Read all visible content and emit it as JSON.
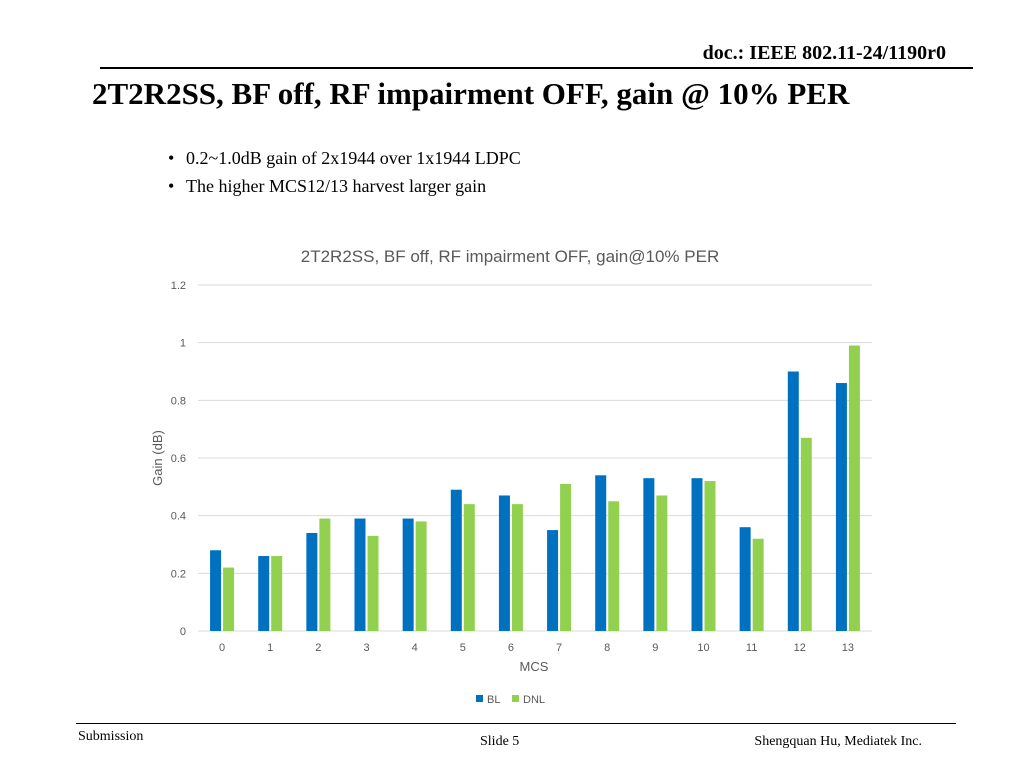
{
  "header": {
    "doc_id": "doc.: IEEE 802.11-24/1190r0",
    "title": "2T2R2SS, BF off, RF impairment OFF, gain @ 10% PER"
  },
  "bullets": [
    "0.2~1.0dB gain of 2x1944 over 1x1944 LDPC",
    "The higher MCS12/13 harvest larger gain"
  ],
  "chart_data": {
    "type": "bar",
    "title": "2T2R2SS, BF off, RF impairment OFF, gain@10% PER",
    "xlabel": "MCS",
    "ylabel": "Gain (dB)",
    "categories": [
      "0",
      "1",
      "2",
      "3",
      "4",
      "5",
      "6",
      "7",
      "8",
      "9",
      "10",
      "11",
      "12",
      "13"
    ],
    "ylim": [
      0,
      1.2
    ],
    "yticks": [
      "0",
      "0.2",
      "0.4",
      "0.6",
      "0.8",
      "1",
      "1.2"
    ],
    "grid": true,
    "legend_position": "bottom",
    "series": [
      {
        "name": "BL",
        "color": "#0070C0",
        "values": [
          0.28,
          0.26,
          0.34,
          0.39,
          0.39,
          0.49,
          0.47,
          0.35,
          0.54,
          0.53,
          0.53,
          0.36,
          0.9,
          0.86
        ]
      },
      {
        "name": "DNL",
        "color": "#92D050",
        "values": [
          0.22,
          0.26,
          0.39,
          0.33,
          0.38,
          0.44,
          0.44,
          0.51,
          0.45,
          0.47,
          0.52,
          0.32,
          0.67,
          0.99
        ]
      }
    ]
  },
  "footer": {
    "left": "Submission",
    "center": "Slide 5",
    "right": "Shengquan Hu, Mediatek Inc."
  }
}
